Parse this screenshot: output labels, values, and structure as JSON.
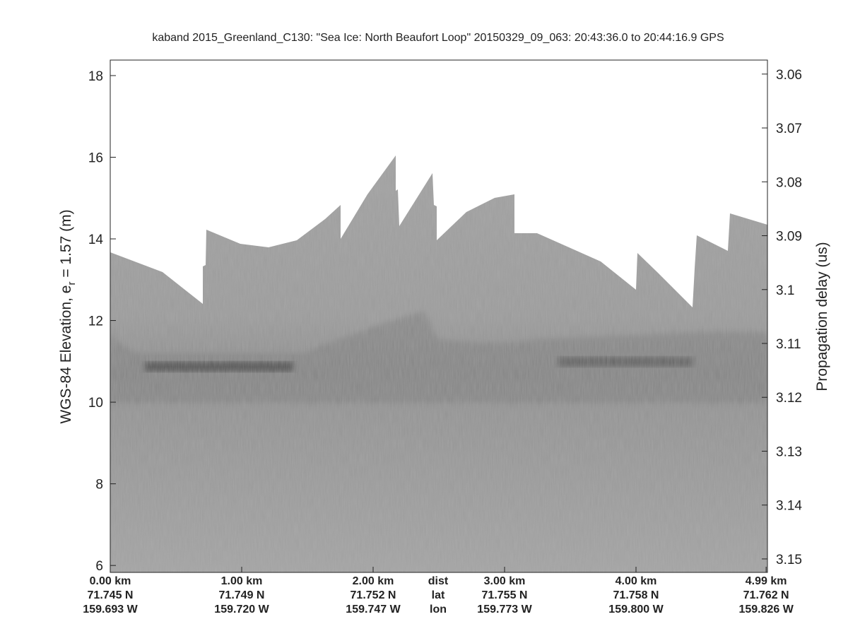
{
  "chart_data": {
    "type": "echogram",
    "title": "kaband 2015_Greenland_C130: \"Sea Ice: North Beaufort Loop\"  20150329_09_063: 20:43:36.0 to 20:44:16.9 GPS",
    "ylabel": {
      "prefix": "WGS-84 Elevation, e",
      "subscript": "r",
      "suffix": " = 1.57 (m)"
    },
    "y2label": "Propagation delay (us)",
    "xlim": [
      0,
      5.0
    ],
    "xticks": [
      {
        "value": 0,
        "label": "0.00 km"
      },
      {
        "value": 1,
        "label": "1.00 km"
      },
      {
        "value": 2,
        "label": "2.00 km"
      },
      {
        "value": 3,
        "label": "3.00 km"
      },
      {
        "value": 4,
        "label": "4.00 km"
      },
      {
        "value": 4.99,
        "label": "4.99 km"
      }
    ],
    "x_lat_labels": [
      "71.745 N",
      "71.749 N",
      "71.752 N",
      "71.755 N",
      "71.758 N",
      "71.762 N"
    ],
    "x_lon_labels": [
      "159.693 W",
      "159.720 W",
      "159.747 W",
      "159.773 W",
      "159.800 W",
      "159.826 W"
    ],
    "x_row_labels": [
      "dist",
      "lat",
      "lon"
    ],
    "ylim": [
      5.83,
      18.38
    ],
    "yticks": [
      6,
      8,
      10,
      12,
      14,
      16,
      18
    ],
    "y2lim": [
      3.1525,
      3.0574
    ],
    "y2ticks": [
      3.06,
      3.07,
      3.08,
      3.09,
      3.1,
      3.11,
      3.12,
      3.13,
      3.14,
      3.15
    ]
  }
}
